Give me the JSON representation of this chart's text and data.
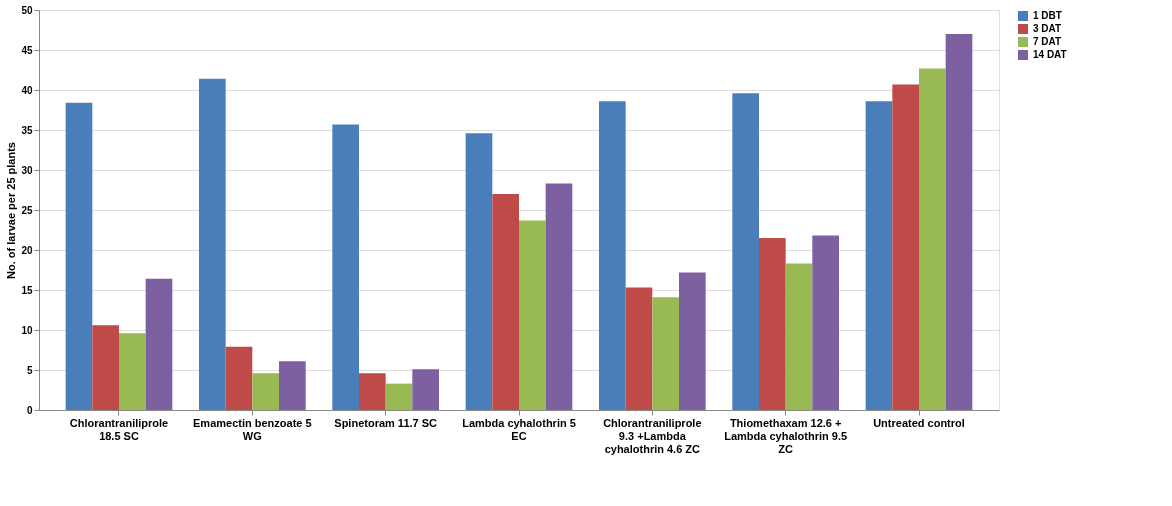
{
  "chart_data": {
    "type": "bar",
    "ylabel": "No. of larvae per 25 plants",
    "categories": [
      "Chlorantraniliprole 18.5 SC",
      "Emamectin benzoate 5 WG",
      "Spinetoram 11.7 SC",
      "Lambda cyhalothrin 5 EC",
      "Chlorantraniliprole 9.3 +Lambda cyhalothrin 4.6 ZC",
      "Thiomethaxam 12.6 + Lambda cyhalothrin 9.5 ZC",
      "Untreated control"
    ],
    "series": [
      {
        "name": "1 DBT",
        "color": "#4a7ebb",
        "values": [
          38.4,
          41.4,
          35.7,
          34.6,
          38.6,
          39.6,
          38.6
        ]
      },
      {
        "name": "3 DAT",
        "color": "#be4b48",
        "values": [
          10.6,
          7.9,
          4.6,
          27.0,
          15.3,
          21.5,
          40.7
        ]
      },
      {
        "name": "7 DAT",
        "color": "#98b954",
        "values": [
          9.6,
          4.6,
          3.3,
          23.7,
          14.1,
          18.3,
          42.7
        ]
      },
      {
        "name": "14 DAT",
        "color": "#7d60a0",
        "values": [
          16.4,
          6.1,
          5.1,
          28.3,
          17.2,
          21.8,
          47.0
        ]
      }
    ],
    "ylim": [
      0,
      50
    ],
    "yticks": [
      0,
      5,
      10,
      15,
      20,
      25,
      30,
      35,
      40,
      45,
      50
    ],
    "grid": "y",
    "legend": "right"
  }
}
